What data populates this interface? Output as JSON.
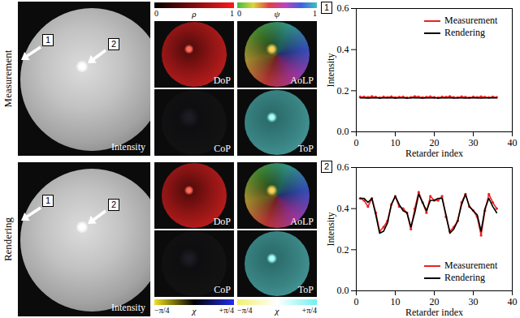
{
  "images": {
    "rows": [
      "Measurement",
      "Rendering"
    ],
    "intensity_label": "Intensity",
    "markers": [
      "1",
      "2"
    ],
    "panels": [
      "DoP",
      "AoLP",
      "CoP",
      "ToP"
    ],
    "colorbars_top": [
      {
        "symbol": "ρ",
        "ticks": [
          0,
          1
        ]
      },
      {
        "symbol": "ψ",
        "ticks": [
          0,
          1
        ]
      }
    ],
    "colorbars_bottom": [
      {
        "symbol": "χ",
        "ticks": [
          {
            "value": -0.785,
            "label": "−π/4"
          },
          {
            "value": 0.785,
            "label": "+π/4"
          }
        ]
      },
      {
        "symbol": "χ",
        "ticks": [
          {
            "value": -0.785,
            "label": "−π/4"
          },
          {
            "value": 0.785,
            "label": "+π/4"
          }
        ]
      }
    ]
  },
  "chart_data": [
    {
      "type": "line",
      "title": "1",
      "x_label": "Retarder index",
      "y_label": "Intensity",
      "x": [
        1,
        2,
        3,
        4,
        5,
        6,
        7,
        8,
        9,
        10,
        11,
        12,
        13,
        14,
        15,
        16,
        17,
        18,
        19,
        20,
        21,
        22,
        23,
        24,
        25,
        26,
        27,
        28,
        29,
        30,
        31,
        32,
        33,
        34,
        35,
        36
      ],
      "series": [
        {
          "name": "Measurement",
          "color": "#e8231f",
          "marker": "circle",
          "values": [
            0.17,
            0.17,
            0.168,
            0.172,
            0.169,
            0.166,
            0.17,
            0.168,
            0.171,
            0.167,
            0.169,
            0.17,
            0.166,
            0.168,
            0.172,
            0.17,
            0.167,
            0.169,
            0.171,
            0.168,
            0.166,
            0.17,
            0.169,
            0.172,
            0.168,
            0.167,
            0.171,
            0.169,
            0.166,
            0.17,
            0.168,
            0.171,
            0.169,
            0.167,
            0.17,
            0.168
          ]
        },
        {
          "name": "Rendering",
          "color": "#000000",
          "marker": "none",
          "values": [
            0.165,
            0.165,
            0.164,
            0.165,
            0.166,
            0.164,
            0.165,
            0.165,
            0.166,
            0.164,
            0.165,
            0.165,
            0.164,
            0.165,
            0.166,
            0.165,
            0.164,
            0.165,
            0.165,
            0.166,
            0.164,
            0.165,
            0.165,
            0.166,
            0.164,
            0.165,
            0.165,
            0.164,
            0.165,
            0.166,
            0.165,
            0.164,
            0.165,
            0.165,
            0.166,
            0.165
          ]
        }
      ],
      "xlim": [
        0,
        40
      ],
      "xticks": [
        0,
        10,
        20,
        30,
        40
      ],
      "ylim": [
        0,
        0.6
      ],
      "yticks": [
        {
          "value": 0,
          "label": "0.0"
        },
        0.2,
        0.4,
        0.6
      ],
      "legend": "upper right",
      "grid": false
    },
    {
      "type": "line",
      "title": "2",
      "x_label": "Retarder index",
      "y_label": "Intensity",
      "x": [
        1,
        2,
        3,
        4,
        5,
        6,
        7,
        8,
        9,
        10,
        11,
        12,
        13,
        14,
        15,
        16,
        17,
        18,
        19,
        20,
        21,
        22,
        23,
        24,
        25,
        26,
        27,
        28,
        29,
        30,
        31,
        32,
        33,
        34,
        35,
        36
      ],
      "series": [
        {
          "name": "Measurement",
          "color": "#e8231f",
          "marker": "circle",
          "values": [
            0.45,
            0.44,
            0.41,
            0.45,
            0.38,
            0.29,
            0.31,
            0.34,
            0.42,
            0.46,
            0.41,
            0.4,
            0.38,
            0.3,
            0.4,
            0.48,
            0.43,
            0.38,
            0.46,
            0.44,
            0.44,
            0.46,
            0.36,
            0.29,
            0.31,
            0.34,
            0.43,
            0.47,
            0.41,
            0.39,
            0.36,
            0.27,
            0.39,
            0.47,
            0.43,
            0.4
          ]
        },
        {
          "name": "Rendering",
          "color": "#000000",
          "marker": "none",
          "values": [
            0.45,
            0.45,
            0.43,
            0.45,
            0.37,
            0.28,
            0.29,
            0.33,
            0.42,
            0.46,
            0.42,
            0.39,
            0.38,
            0.31,
            0.38,
            0.47,
            0.43,
            0.39,
            0.44,
            0.44,
            0.45,
            0.45,
            0.37,
            0.28,
            0.3,
            0.34,
            0.42,
            0.47,
            0.41,
            0.39,
            0.37,
            0.29,
            0.4,
            0.45,
            0.41,
            0.38
          ]
        }
      ],
      "xlim": [
        0,
        40
      ],
      "xticks": [
        0,
        10,
        20,
        30,
        40
      ],
      "ylim": [
        0,
        0.6
      ],
      "yticks": [
        {
          "value": 0,
          "label": "0.0"
        },
        0.2,
        0.4,
        0.6
      ],
      "legend": "lower right",
      "grid": false
    }
  ]
}
